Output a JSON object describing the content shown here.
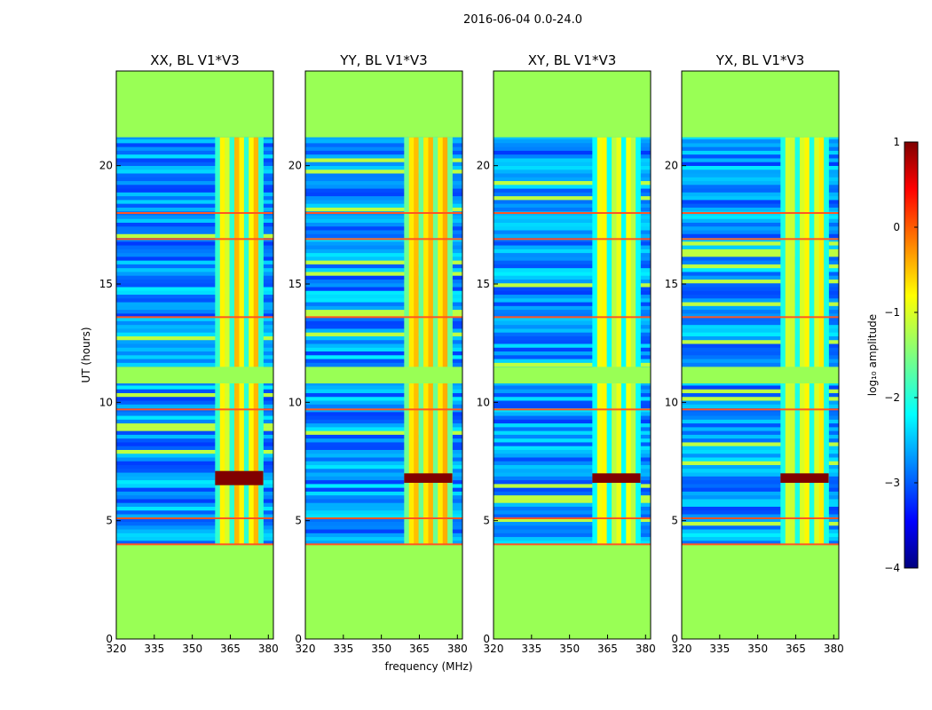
{
  "figure": {
    "suptitle": "2016-06-04 0.0-24.0",
    "ylabel": "UT (hours)",
    "xlabel": "frequency (MHz)"
  },
  "colorbar": {
    "label": "log₁₀ amplitude",
    "ticks": [
      "1",
      "0",
      "−1",
      "−2",
      "−3",
      "−4"
    ],
    "tick_values": [
      1,
      0,
      -1,
      -2,
      -3,
      -4
    ],
    "range": [
      -4,
      1
    ],
    "colormap": "jet"
  },
  "colors": {
    "flagged": "#99ff55",
    "rfi_line": "#ff5522",
    "strong": "#800000"
  },
  "chart_data": [
    {
      "type": "heatmap",
      "title": "XX, BL V1*V3",
      "xlabel": "frequency (MHz)",
      "ylabel": "UT (hours)",
      "xlim": [
        320,
        382
      ],
      "ylim": [
        0,
        24
      ],
      "xticks": [
        320,
        335,
        350,
        365,
        380
      ],
      "yticks": [
        0,
        5,
        10,
        15,
        20
      ],
      "value_range": [
        -4,
        1
      ],
      "flagged_time_ranges": [
        [
          0,
          4
        ],
        [
          10.8,
          11.5
        ],
        [
          21.2,
          24
        ]
      ],
      "band_mhz": [
        359,
        378
      ],
      "band_level": -0.8,
      "strong_time_ranges": [
        [
          6.5,
          7.1
        ]
      ],
      "strong_level": 1
    },
    {
      "type": "heatmap",
      "title": "YY, BL V1*V3",
      "xlabel": "frequency (MHz)",
      "ylabel": "UT (hours)",
      "xlim": [
        320,
        382
      ],
      "ylim": [
        0,
        24
      ],
      "xticks": [
        320,
        335,
        350,
        365,
        380
      ],
      "yticks": [
        0,
        5,
        10,
        15,
        20
      ],
      "value_range": [
        -4,
        1
      ],
      "flagged_time_ranges": [
        [
          0,
          4
        ],
        [
          10.8,
          11.5
        ],
        [
          21.2,
          24
        ]
      ],
      "band_mhz": [
        359,
        378
      ],
      "band_level": -0.5,
      "strong_time_ranges": [
        [
          6.6,
          7.0
        ]
      ],
      "strong_level": 1
    },
    {
      "type": "heatmap",
      "title": "XY, BL V1*V3",
      "xlabel": "frequency (MHz)",
      "ylabel": "UT (hours)",
      "xlim": [
        320,
        382
      ],
      "ylim": [
        0,
        24
      ],
      "xticks": [
        320,
        335,
        350,
        365,
        380
      ],
      "yticks": [
        0,
        5,
        10,
        15,
        20
      ],
      "value_range": [
        -4,
        1
      ],
      "flagged_time_ranges": [
        [
          0,
          4
        ],
        [
          10.8,
          11.5
        ],
        [
          21.2,
          24
        ]
      ],
      "band_mhz": [
        359,
        378
      ],
      "band_level": -1.0,
      "strong_time_ranges": [
        [
          6.6,
          7.0
        ]
      ],
      "strong_level": 1
    },
    {
      "type": "heatmap",
      "title": "YX, BL V1*V3",
      "xlabel": "frequency (MHz)",
      "ylabel": "UT (hours)",
      "xlim": [
        320,
        382
      ],
      "ylim": [
        0,
        24
      ],
      "xticks": [
        320,
        335,
        350,
        365,
        380
      ],
      "yticks": [
        0,
        5,
        10,
        15,
        20
      ],
      "value_range": [
        -4,
        1
      ],
      "flagged_time_ranges": [
        [
          0,
          4
        ],
        [
          10.8,
          11.5
        ],
        [
          21.2,
          24
        ]
      ],
      "band_mhz": [
        359,
        378
      ],
      "band_level": -0.9,
      "strong_time_ranges": [
        [
          6.6,
          7.0
        ]
      ],
      "strong_level": 1
    }
  ]
}
